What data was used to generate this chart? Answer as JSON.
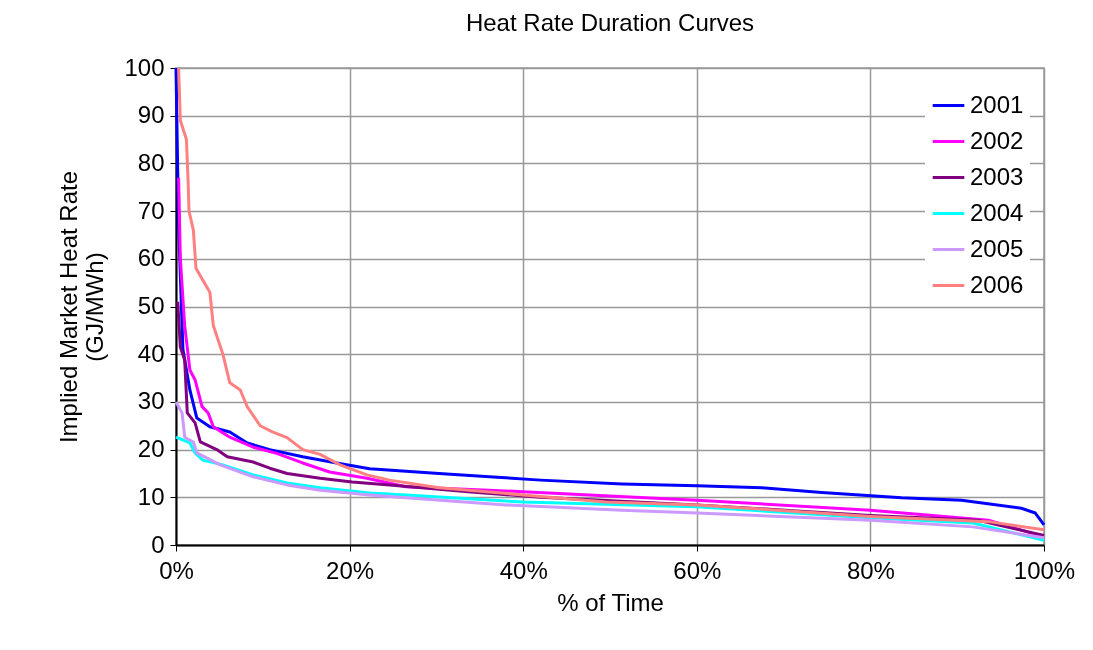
{
  "chart_data": {
    "type": "line",
    "title": "Heat Rate Duration Curves",
    "xlabel": "% of Time",
    "ylabel": "Implied Market Heat Rate\n(GJ/MWh)",
    "xlim": [
      0,
      100
    ],
    "ylim": [
      0,
      100
    ],
    "xticks": [
      {
        "value": 0,
        "label": "0%"
      },
      {
        "value": 20,
        "label": "20%"
      },
      {
        "value": 40,
        "label": "40%"
      },
      {
        "value": 60,
        "label": "60%"
      },
      {
        "value": 80,
        "label": "80%"
      },
      {
        "value": 100,
        "label": "100%"
      }
    ],
    "yticks": [
      0,
      10,
      20,
      30,
      40,
      50,
      60,
      70,
      80,
      90,
      100
    ],
    "grid": true,
    "legend": "top right",
    "line_style": "solid",
    "marker": "none",
    "series": [
      {
        "name": "2001",
        "color": "#0000ff",
        "x": [
          0,
          0.3,
          0.8,
          1.6,
          2.4,
          3.9,
          6.2,
          8.2,
          10.8,
          14.6,
          18.5,
          22.3,
          30.3,
          37,
          42,
          51.4,
          60,
          67.5,
          74.4,
          83.6,
          90.5,
          97.4,
          99,
          100
        ],
        "values": [
          100,
          67,
          41,
          32.5,
          26.6,
          24.8,
          23.7,
          21.4,
          20,
          18.5,
          17.2,
          16,
          15,
          14.2,
          13.6,
          12.8,
          12.4,
          12,
          11,
          9.9,
          9.4,
          7.7,
          6.7,
          4.2
        ]
      },
      {
        "name": "2002",
        "color": "#ff00ff",
        "x": [
          0.3,
          0.5,
          1,
          1.6,
          2.2,
          3,
          3.7,
          4.3,
          6.2,
          8.9,
          11.6,
          14.6,
          17.7,
          22,
          26.5,
          36,
          47.6,
          60,
          80,
          93.6,
          100
        ],
        "values": [
          77,
          60,
          46,
          36.7,
          34.6,
          29,
          27.7,
          24.8,
          22.6,
          20.5,
          19.2,
          17.2,
          15.3,
          14,
          12.2,
          11.5,
          10.5,
          9.4,
          7.3,
          5.2,
          1.7
        ]
      },
      {
        "name": "2003",
        "color": "#800080",
        "x": [
          0.2,
          0.5,
          1,
          1.3,
          2.2,
          2.8,
          4.7,
          5.9,
          8.9,
          10.8,
          12.8,
          16.6,
          20.3,
          24.6,
          34,
          42,
          60,
          80,
          92.4,
          100
        ],
        "values": [
          51,
          41.5,
          38.8,
          27.7,
          25.6,
          21.6,
          20,
          18.5,
          17.4,
          16.1,
          15,
          14,
          13.2,
          12.6,
          11.1,
          10,
          8.4,
          6.2,
          5.2,
          2
        ]
      },
      {
        "name": "2004",
        "color": "#00ffff",
        "x": [
          0,
          1.6,
          2.2,
          3.1,
          5.4,
          8.9,
          12.8,
          16.6,
          22.3,
          26.5,
          40,
          60,
          80,
          91.8,
          100
        ],
        "values": [
          22.6,
          21.4,
          19.3,
          17.8,
          16.8,
          14.7,
          13,
          12,
          10.9,
          10.5,
          9,
          8,
          5.7,
          4.6,
          1
        ]
      },
      {
        "name": "2005",
        "color": "#cc99ff",
        "x": [
          0,
          0.7,
          1,
          2,
          2.4,
          5.1,
          8.9,
          12.8,
          16.6,
          22.3,
          26.5,
          38,
          51.4,
          60,
          80,
          91.8,
          100
        ],
        "values": [
          30,
          27.7,
          22.6,
          21.6,
          19.3,
          16.8,
          14.3,
          12.6,
          11.5,
          10.5,
          9.9,
          8.4,
          7.3,
          6.7,
          5.2,
          3.8,
          1.5
        ]
      },
      {
        "name": "2006",
        "color": "#ff8080",
        "x": [
          0.3,
          0.5,
          1.2,
          1.4,
          1.5,
          2,
          2.3,
          3.1,
          3.9,
          4.3,
          5.4,
          6.2,
          7.4,
          8.2,
          9.7,
          11.1,
          12.8,
          14.6,
          16.6,
          18.9,
          22,
          24.6,
          30.3,
          40,
          49.5,
          60,
          80,
          93.6,
          100
        ],
        "values": [
          100,
          89,
          85,
          76,
          70,
          66,
          58,
          55.5,
          53,
          46,
          40,
          34,
          32.5,
          29,
          25,
          23.7,
          22.5,
          20,
          19,
          16.8,
          14.7,
          13.6,
          12,
          10.5,
          9,
          8.4,
          6,
          4.9,
          3.2
        ]
      }
    ]
  }
}
